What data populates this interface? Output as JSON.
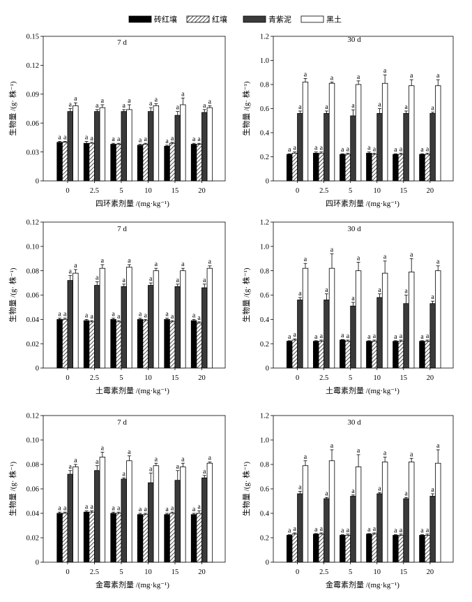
{
  "legend": [
    {
      "name": "砖红壤",
      "color": "#000000"
    },
    {
      "name": "红壤",
      "color": "#000000"
    },
    {
      "name": "青紫泥",
      "color": "#3a3a3a"
    },
    {
      "name": "黑土",
      "color": "#ffffff"
    }
  ],
  "chart_data": [
    {
      "type": "bar",
      "title": "7 d",
      "xlabel": "四环素剂量 /(mg·kg⁻¹)",
      "ylabel": "生物量 /(g· 株⁻¹)",
      "categories": [
        "0",
        "2.5",
        "5",
        "10",
        "15",
        "20"
      ],
      "ylim": [
        0,
        0.15
      ],
      "yticks": [
        0,
        0.03,
        0.06,
        0.09,
        0.12,
        0.15
      ],
      "ytick_labels": [
        "0",
        "0.03",
        "0.06",
        "0.09",
        "0.12",
        "0.15"
      ],
      "series": [
        {
          "name": "砖红壤",
          "values": [
            0.04,
            0.039,
            0.038,
            0.037,
            0.036,
            0.038
          ],
          "errors": [
            0.001,
            0.002,
            0.001,
            0.001,
            0.001,
            0.001
          ],
          "labels": [
            "a",
            "a",
            "a",
            "a",
            "a",
            "a"
          ]
        },
        {
          "name": "红壤",
          "values": [
            0.04,
            0.039,
            0.038,
            0.038,
            0.039,
            0.038
          ],
          "errors": [
            0.001,
            0.001,
            0.001,
            0.001,
            0.001,
            0.001
          ],
          "labels": [
            "a",
            "a",
            "a",
            "a",
            "a",
            "a"
          ]
        },
        {
          "name": "青紫泥",
          "values": [
            0.072,
            0.072,
            0.072,
            0.072,
            0.068,
            0.071
          ],
          "errors": [
            0.003,
            0.002,
            0.002,
            0.004,
            0.004,
            0.003
          ],
          "labels": [
            "a",
            "a",
            "a",
            "a",
            "a",
            "a"
          ]
        },
        {
          "name": "黑土",
          "values": [
            0.078,
            0.076,
            0.074,
            0.078,
            0.079,
            0.076
          ],
          "errors": [
            0.003,
            0.003,
            0.005,
            0.002,
            0.007,
            0.002
          ],
          "labels": [
            "a",
            "a",
            "a",
            "a",
            "a",
            "a"
          ]
        }
      ]
    },
    {
      "type": "bar",
      "title": "30 d",
      "xlabel": "四环素剂量 /(mg·kg⁻¹)",
      "ylabel": "生物量 /(g· 株⁻¹)",
      "categories": [
        "0",
        "2.5",
        "5",
        "10",
        "15",
        "20"
      ],
      "ylim": [
        0,
        1.2
      ],
      "yticks": [
        0,
        0.2,
        0.4,
        0.6,
        0.8,
        1.0,
        1.2
      ],
      "ytick_labels": [
        "0",
        "0.2",
        "0.4",
        "0.6",
        "0.8",
        "1.0",
        "1.2"
      ],
      "series": [
        {
          "name": "砖红壤",
          "values": [
            0.22,
            0.23,
            0.22,
            0.23,
            0.22,
            0.22
          ],
          "errors": [
            0.005,
            0.01,
            0.005,
            0.01,
            0.005,
            0.005
          ],
          "labels": [
            "a",
            "a",
            "a",
            "a",
            "a",
            "a"
          ]
        },
        {
          "name": "红壤",
          "values": [
            0.23,
            0.23,
            0.22,
            0.22,
            0.22,
            0.22
          ],
          "errors": [
            0.01,
            0.01,
            0.01,
            0.01,
            0.01,
            0.01
          ],
          "labels": [
            "a",
            "a",
            "a",
            "a",
            "a",
            "a"
          ]
        },
        {
          "name": "青紫泥",
          "values": [
            0.56,
            0.56,
            0.54,
            0.56,
            0.56,
            0.56
          ],
          "errors": [
            0.02,
            0.02,
            0.05,
            0.04,
            0.02,
            0.01
          ],
          "labels": [
            "a",
            "a",
            "a",
            "a",
            "a",
            "a"
          ]
        },
        {
          "name": "黑土",
          "values": [
            0.82,
            0.81,
            0.8,
            0.81,
            0.79,
            0.79
          ],
          "errors": [
            0.03,
            0.01,
            0.03,
            0.07,
            0.05,
            0.05
          ],
          "labels": [
            "a",
            "a",
            "a",
            "a",
            "a",
            "a"
          ]
        }
      ]
    },
    {
      "type": "bar",
      "title": "7 d",
      "xlabel": "土霉素剂量 /(mg·kg⁻¹)",
      "ylabel": "生物量 /(g· 株⁻¹)",
      "categories": [
        "0",
        "2.5",
        "5",
        "10",
        "15",
        "20"
      ],
      "ylim": [
        0,
        0.12
      ],
      "yticks": [
        0,
        0.02,
        0.04,
        0.06,
        0.08,
        0.1,
        0.12
      ],
      "ytick_labels": [
        "0",
        "0.02",
        "0.04",
        "0.06",
        "0.08",
        "0.10",
        "0.12"
      ],
      "series": [
        {
          "name": "砖红壤",
          "values": [
            0.04,
            0.039,
            0.04,
            0.04,
            0.04,
            0.039
          ],
          "errors": [
            0.001,
            0.001,
            0.001,
            0.001,
            0.001,
            0.001
          ],
          "labels": [
            "a",
            "a",
            "a",
            "a",
            "a",
            "a"
          ]
        },
        {
          "name": "红壤",
          "values": [
            0.04,
            0.038,
            0.038,
            0.039,
            0.038,
            0.037
          ],
          "errors": [
            0.001,
            0.001,
            0.001,
            0.001,
            0.001,
            0.001
          ],
          "labels": [
            "a",
            "a",
            "a",
            "a",
            "a",
            "a"
          ]
        },
        {
          "name": "青紫泥",
          "values": [
            0.072,
            0.068,
            0.067,
            0.068,
            0.067,
            0.066
          ],
          "errors": [
            0.004,
            0.003,
            0.002,
            0.002,
            0.002,
            0.003
          ],
          "labels": [
            "a",
            "a",
            "a",
            "a",
            "a",
            "a"
          ]
        },
        {
          "name": "黑土",
          "values": [
            0.078,
            0.082,
            0.083,
            0.08,
            0.08,
            0.082
          ],
          "errors": [
            0.003,
            0.003,
            0.002,
            0.002,
            0.002,
            0.002
          ],
          "labels": [
            "a",
            "a",
            "a",
            "a",
            "a",
            "a"
          ]
        }
      ]
    },
    {
      "type": "bar",
      "title": "30 d",
      "xlabel": "土霉素剂量 /(mg·kg⁻¹)",
      "ylabel": "生物量 /(g· 株⁻¹)",
      "categories": [
        "0",
        "2.5",
        "5",
        "10",
        "15",
        "20"
      ],
      "ylim": [
        0,
        1.2
      ],
      "yticks": [
        0,
        0.2,
        0.4,
        0.6,
        0.8,
        1.0,
        1.2
      ],
      "ytick_labels": [
        "0",
        "0.2",
        "0.4",
        "0.6",
        "0.8",
        "1.0",
        "1.2"
      ],
      "series": [
        {
          "name": "砖红壤",
          "values": [
            0.22,
            0.22,
            0.23,
            0.22,
            0.22,
            0.22
          ],
          "errors": [
            0.005,
            0.005,
            0.005,
            0.005,
            0.005,
            0.005
          ],
          "labels": [
            "a",
            "a",
            "a",
            "a",
            "a",
            "a"
          ]
        },
        {
          "name": "红壤",
          "values": [
            0.23,
            0.22,
            0.22,
            0.22,
            0.22,
            0.22
          ],
          "errors": [
            0.01,
            0.01,
            0.01,
            0.01,
            0.01,
            0.01
          ],
          "labels": [
            "a",
            "a",
            "a",
            "a",
            "a",
            "a"
          ]
        },
        {
          "name": "青紫泥",
          "values": [
            0.56,
            0.56,
            0.51,
            0.58,
            0.53,
            0.53
          ],
          "errors": [
            0.02,
            0.05,
            0.03,
            0.03,
            0.07,
            0.02
          ],
          "labels": [
            "a",
            "a",
            "a",
            "a",
            "a",
            "a"
          ]
        },
        {
          "name": "黑土",
          "values": [
            0.82,
            0.82,
            0.8,
            0.78,
            0.79,
            0.8
          ],
          "errors": [
            0.04,
            0.12,
            0.07,
            0.1,
            0.11,
            0.04
          ],
          "labels": [
            "a",
            "a",
            "a",
            "a",
            "a",
            "a"
          ]
        }
      ]
    },
    {
      "type": "bar",
      "title": "7 d",
      "xlabel": "金霉素剂量 /(mg·kg⁻¹)",
      "ylabel": "生物量 /(g· 株⁻¹)",
      "categories": [
        "0",
        "2.5",
        "5",
        "10",
        "15",
        "20"
      ],
      "ylim": [
        0,
        0.12
      ],
      "yticks": [
        0,
        0.02,
        0.04,
        0.06,
        0.08,
        0.1,
        0.12
      ],
      "ytick_labels": [
        "0",
        "0.02",
        "0.04",
        "0.06",
        "0.08",
        "0.10",
        "0.12"
      ],
      "series": [
        {
          "name": "砖红壤",
          "values": [
            0.04,
            0.041,
            0.04,
            0.039,
            0.039,
            0.039
          ],
          "errors": [
            0.001,
            0.001,
            0.001,
            0.001,
            0.001,
            0.001
          ],
          "labels": [
            "a",
            "a",
            "a",
            "a",
            "a",
            "a"
          ]
        },
        {
          "name": "红壤",
          "values": [
            0.04,
            0.041,
            0.04,
            0.039,
            0.04,
            0.04
          ],
          "errors": [
            0.001,
            0.001,
            0.001,
            0.001,
            0.001,
            0.002
          ],
          "labels": [
            "a",
            "a",
            "a",
            "a",
            "a",
            "a"
          ]
        },
        {
          "name": "青紫泥",
          "values": [
            0.072,
            0.075,
            0.068,
            0.065,
            0.067,
            0.069
          ],
          "errors": [
            0.003,
            0.004,
            0.001,
            0.008,
            0.008,
            0.002
          ],
          "labels": [
            "a",
            "a",
            "a",
            "a",
            "a",
            "a"
          ]
        },
        {
          "name": "黑土",
          "values": [
            0.078,
            0.086,
            0.083,
            0.079,
            0.078,
            0.081
          ],
          "errors": [
            0.002,
            0.004,
            0.004,
            0.002,
            0.003,
            0.001
          ],
          "labels": [
            "a",
            "a",
            "a",
            "a",
            "a",
            "a"
          ]
        }
      ]
    },
    {
      "type": "bar",
      "title": "30 d",
      "xlabel": "金霉素剂量 /(mg·kg⁻¹)",
      "ylabel": "生物量 /(g· 株⁻¹)",
      "categories": [
        "0",
        "2.5",
        "5",
        "10",
        "15",
        "20"
      ],
      "ylim": [
        0,
        1.2
      ],
      "yticks": [
        0,
        0.2,
        0.4,
        0.6,
        0.8,
        1.0,
        1.2
      ],
      "ytick_labels": [
        "0",
        "0.2",
        "0.4",
        "0.6",
        "0.8",
        "1.0",
        "1.2"
      ],
      "series": [
        {
          "name": "砖红壤",
          "values": [
            0.22,
            0.23,
            0.22,
            0.23,
            0.22,
            0.22
          ],
          "errors": [
            0.005,
            0.005,
            0.005,
            0.005,
            0.005,
            0.005
          ],
          "labels": [
            "a",
            "a",
            "a",
            "a",
            "a",
            "a"
          ]
        },
        {
          "name": "红壤",
          "values": [
            0.23,
            0.23,
            0.22,
            0.23,
            0.22,
            0.22
          ],
          "errors": [
            0.01,
            0.01,
            0.01,
            0.01,
            0.01,
            0.01
          ],
          "labels": [
            "a",
            "a",
            "a",
            "a",
            "a",
            "a"
          ]
        },
        {
          "name": "青紫泥",
          "values": [
            0.56,
            0.52,
            0.54,
            0.56,
            0.52,
            0.54
          ],
          "errors": [
            0.02,
            0.01,
            0.01,
            0.01,
            0.01,
            0.02
          ],
          "labels": [
            "a",
            "a",
            "a",
            "a",
            "a",
            "a"
          ]
        },
        {
          "name": "黑土",
          "values": [
            0.79,
            0.83,
            0.78,
            0.82,
            0.82,
            0.81
          ],
          "errors": [
            0.04,
            0.09,
            0.1,
            0.04,
            0.03,
            0.11
          ],
          "labels": [
            "a",
            "a",
            "a",
            "a",
            "a",
            "a"
          ]
        }
      ]
    }
  ]
}
